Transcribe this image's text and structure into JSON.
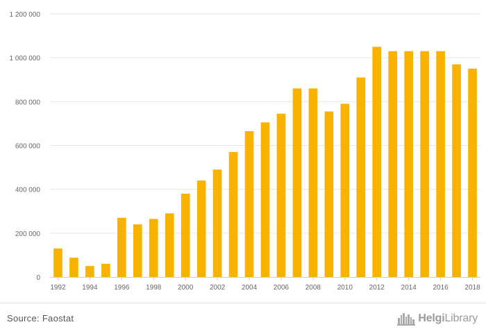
{
  "chart_data": {
    "type": "bar",
    "categories": [
      "1992",
      "1993",
      "1994",
      "1995",
      "1996",
      "1997",
      "1998",
      "1999",
      "2000",
      "2001",
      "2002",
      "2003",
      "2004",
      "2005",
      "2006",
      "2007",
      "2008",
      "2009",
      "2010",
      "2011",
      "2012",
      "2013",
      "2014",
      "2015",
      "2016",
      "2017",
      "2018"
    ],
    "values": [
      130000,
      88000,
      50000,
      60000,
      270000,
      240000,
      265000,
      290000,
      380000,
      440000,
      490000,
      570000,
      665000,
      705000,
      745000,
      860000,
      860000,
      755000,
      790000,
      910000,
      1050000,
      1030000,
      1030000,
      1030000,
      1030000,
      970000,
      950000
    ],
    "x_tick_labels": [
      "1992",
      "1994",
      "1996",
      "1998",
      "2000",
      "2002",
      "2004",
      "2006",
      "2008",
      "2010",
      "2012",
      "2014",
      "2016",
      "2018"
    ],
    "y_ticks": [
      0,
      200000,
      400000,
      600000,
      800000,
      1000000,
      1200000
    ],
    "y_tick_labels": [
      "0",
      "200 000",
      "400 000",
      "600 000",
      "800 000",
      "1 000 000",
      "1 200 000"
    ],
    "ylim": [
      0,
      1200000
    ],
    "title": "",
    "xlabel": "",
    "ylabel": "",
    "grid": true,
    "bar_color": "#f9b200",
    "grid_color": "#e6e6e6",
    "axis_color": "#cccccc"
  },
  "footer": {
    "source": "Source: Faostat",
    "logo_bold": "Helgi",
    "logo_rest": "Library",
    "logo_icon": "city-skyline-icon"
  }
}
